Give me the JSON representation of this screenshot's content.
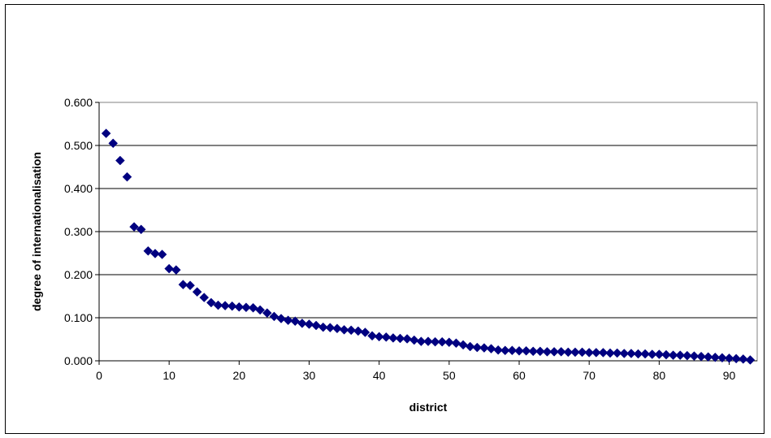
{
  "chart_data": {
    "type": "scatter",
    "title": "",
    "xlabel": "district",
    "ylabel": "degree of internationalisation",
    "xlim": [
      0,
      94
    ],
    "ylim": [
      0,
      0.6
    ],
    "x_ticks": [
      0,
      10,
      20,
      30,
      40,
      50,
      60,
      70,
      80,
      90
    ],
    "x_tick_labels": [
      "0",
      "10",
      "20",
      "30",
      "40",
      "50",
      "60",
      "70",
      "80",
      "90"
    ],
    "y_ticks": [
      0,
      0.1,
      0.2,
      0.3,
      0.4,
      0.5,
      0.6
    ],
    "y_tick_labels": [
      "0.000",
      "0.100",
      "0.200",
      "0.300",
      "0.400",
      "0.500",
      "0.600"
    ],
    "grid": "horizontal",
    "legend": "none",
    "marker": "diamond",
    "marker_color": "#000080",
    "x": [
      1,
      2,
      3,
      4,
      5,
      6,
      7,
      8,
      9,
      10,
      11,
      12,
      13,
      14,
      15,
      16,
      17,
      18,
      19,
      20,
      21,
      22,
      23,
      24,
      25,
      26,
      27,
      28,
      29,
      30,
      31,
      32,
      33,
      34,
      35,
      36,
      37,
      38,
      39,
      40,
      41,
      42,
      43,
      44,
      45,
      46,
      47,
      48,
      49,
      50,
      51,
      52,
      53,
      54,
      55,
      56,
      57,
      58,
      59,
      60,
      61,
      62,
      63,
      64,
      65,
      66,
      67,
      68,
      69,
      70,
      71,
      72,
      73,
      74,
      75,
      76,
      77,
      78,
      79,
      80,
      81,
      82,
      83,
      84,
      85,
      86,
      87,
      88,
      89,
      90,
      91,
      92,
      93
    ],
    "y": [
      0.528,
      0.505,
      0.465,
      0.427,
      0.311,
      0.305,
      0.255,
      0.249,
      0.247,
      0.214,
      0.211,
      0.177,
      0.175,
      0.16,
      0.147,
      0.135,
      0.129,
      0.128,
      0.127,
      0.125,
      0.124,
      0.123,
      0.118,
      0.111,
      0.103,
      0.098,
      0.094,
      0.092,
      0.087,
      0.085,
      0.082,
      0.078,
      0.077,
      0.075,
      0.072,
      0.071,
      0.069,
      0.066,
      0.058,
      0.056,
      0.055,
      0.053,
      0.052,
      0.051,
      0.048,
      0.045,
      0.045,
      0.044,
      0.044,
      0.043,
      0.041,
      0.037,
      0.033,
      0.031,
      0.03,
      0.028,
      0.025,
      0.024,
      0.024,
      0.023,
      0.023,
      0.022,
      0.022,
      0.021,
      0.021,
      0.021,
      0.02,
      0.02,
      0.02,
      0.019,
      0.019,
      0.019,
      0.018,
      0.018,
      0.017,
      0.017,
      0.016,
      0.016,
      0.015,
      0.015,
      0.014,
      0.013,
      0.013,
      0.012,
      0.011,
      0.01,
      0.009,
      0.008,
      0.007,
      0.006,
      0.005,
      0.004,
      0.002
    ]
  }
}
